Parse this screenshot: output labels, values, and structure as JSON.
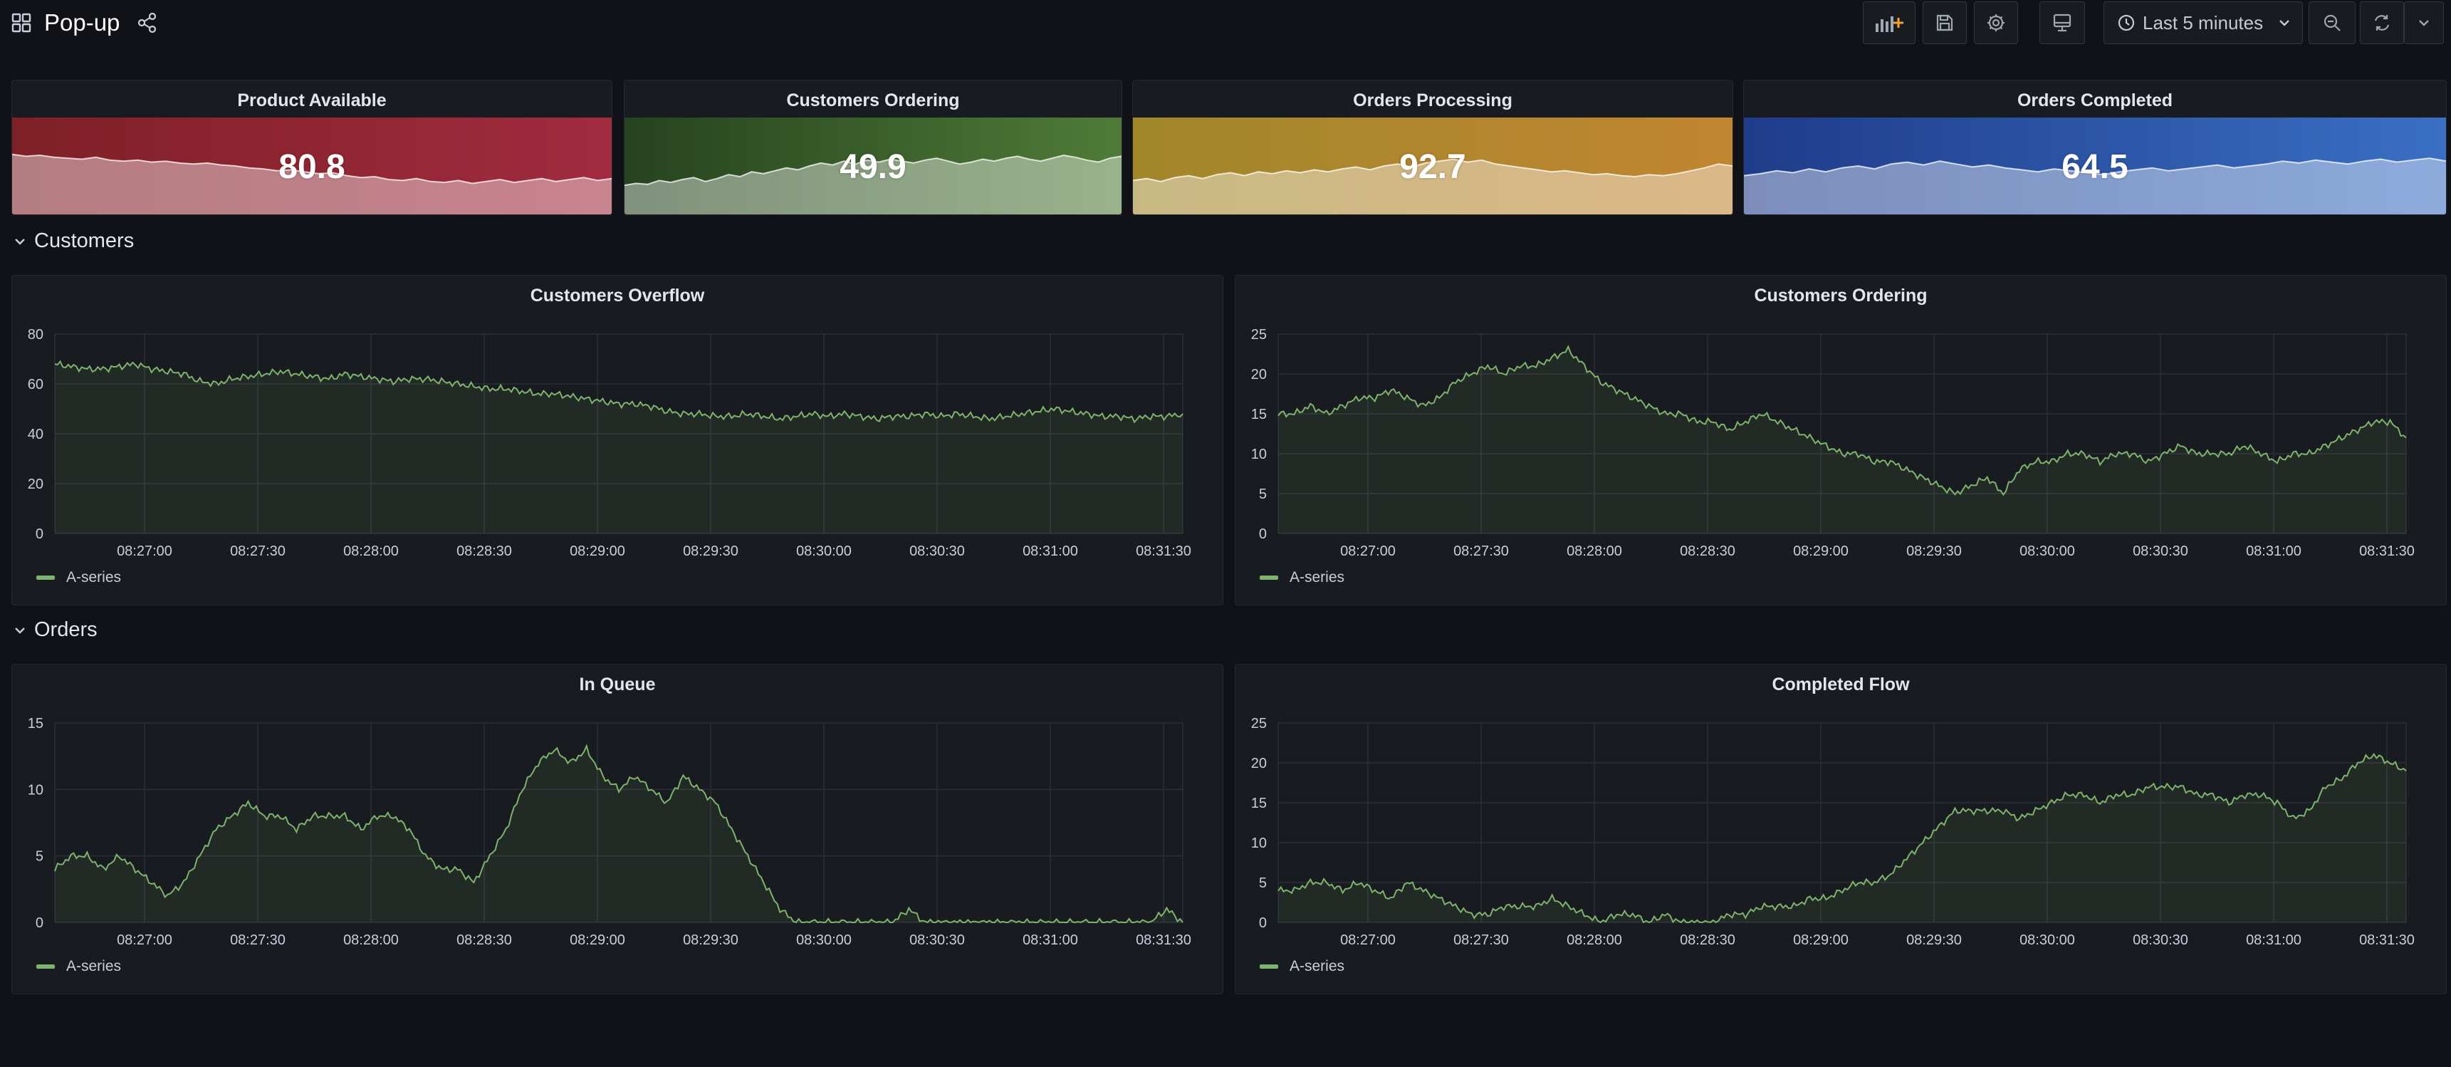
{
  "header": {
    "title": "Pop-up",
    "time_range": "Last 5 minutes",
    "icons": [
      "dashboards-grid-icon",
      "share-icon",
      "add-panel-icon",
      "save-icon",
      "settings-icon",
      "tv-mode-icon",
      "clock-icon",
      "chevron-down-icon",
      "zoom-out-icon",
      "refresh-icon",
      "chevron-down-icon"
    ]
  },
  "stats": [
    {
      "title": "Product Available",
      "value": "80.8",
      "color_from": "#7e2026",
      "color_to": "#a12b3f",
      "spark": [
        62,
        60,
        61,
        59,
        58,
        57,
        59,
        56,
        55,
        56,
        54,
        55,
        53,
        52,
        53,
        51,
        50,
        48,
        47,
        45,
        46,
        44,
        42,
        43,
        40,
        38,
        39,
        36,
        35,
        37,
        34,
        33,
        35,
        32,
        34,
        36,
        33,
        35,
        37,
        34,
        36,
        38,
        35,
        37
      ]
    },
    {
      "title": "Customers Ordering",
      "value": "49.9",
      "color_from": "#26431f",
      "color_to": "#4f7b37",
      "spark": [
        30,
        32,
        31,
        35,
        33,
        36,
        38,
        34,
        37,
        41,
        39,
        44,
        42,
        45,
        48,
        46,
        50,
        53,
        51,
        55,
        52,
        56,
        54,
        57,
        55,
        53,
        56,
        58,
        55,
        52,
        54,
        57,
        55,
        58,
        60,
        57,
        55,
        58,
        61,
        59,
        56,
        54,
        58,
        60
      ]
    },
    {
      "title": "Orders Processing",
      "value": "92.7",
      "color_from": "#a1872a",
      "color_to": "#c18632",
      "spark": [
        35,
        37,
        34,
        38,
        40,
        37,
        41,
        43,
        40,
        44,
        42,
        45,
        43,
        46,
        44,
        47,
        49,
        46,
        50,
        52,
        49,
        53,
        55,
        57,
        54,
        56,
        52,
        50,
        48,
        46,
        44,
        45,
        43,
        41,
        42,
        40,
        39,
        41,
        40,
        42,
        45,
        48,
        52,
        50
      ]
    },
    {
      "title": "Orders Completed",
      "value": "64.5",
      "color_from": "#1f3c8a",
      "color_to": "#3a6fc3",
      "spark": [
        40,
        42,
        45,
        43,
        47,
        44,
        48,
        50,
        47,
        52,
        54,
        51,
        55,
        52,
        49,
        51,
        48,
        46,
        44,
        47,
        45,
        43,
        41,
        44,
        46,
        48,
        45,
        47,
        49,
        51,
        48,
        50,
        52,
        55,
        53,
        56,
        54,
        52,
        55,
        57,
        54,
        56,
        58,
        55
      ]
    }
  ],
  "rows": [
    {
      "title": "Customers",
      "icon": "chevron-down-icon"
    },
    {
      "title": "Orders",
      "icon": "chevron-down-icon"
    }
  ],
  "x_ticks": [
    "08:27:00",
    "08:27:30",
    "08:28:00",
    "08:28:30",
    "08:29:00",
    "08:29:30",
    "08:30:00",
    "08:30:30",
    "08:31:00",
    "08:31:30"
  ],
  "chart_data": [
    {
      "type": "line",
      "title": "Customers Overflow",
      "ylim": [
        0,
        80
      ],
      "y_ticks": [
        0,
        20,
        40,
        60,
        80
      ],
      "series": [
        {
          "name": "A-series",
          "color": "#7eb26d",
          "values": [
            68,
            67,
            66,
            66,
            67,
            68,
            66,
            65,
            64,
            61,
            60,
            62,
            63,
            64,
            65,
            64,
            63,
            62,
            64,
            63,
            62,
            61,
            62,
            62,
            61,
            60,
            59,
            58,
            58,
            57,
            56,
            56,
            55,
            54,
            53,
            52,
            52,
            51,
            49,
            48,
            48,
            47,
            47,
            48,
            47,
            46,
            47,
            48,
            47,
            48,
            47,
            46,
            47,
            47,
            48,
            47,
            48,
            47,
            46,
            47,
            48,
            49,
            50,
            49,
            48,
            47,
            47,
            46,
            47,
            47,
            48
          ]
        }
      ]
    },
    {
      "type": "line",
      "title": "Customers Ordering",
      "ylim": [
        0,
        25
      ],
      "y_ticks": [
        0,
        5,
        10,
        15,
        20,
        25
      ],
      "series": [
        {
          "name": "A-series",
          "color": "#7eb26d",
          "values": [
            15,
            15,
            16,
            15,
            16,
            17,
            17,
            18,
            17,
            16,
            17,
            19,
            20,
            21,
            20,
            21,
            21,
            22,
            23,
            21,
            19,
            18,
            17,
            16,
            15,
            15,
            14,
            14,
            13,
            14,
            15,
            14,
            13,
            12,
            11,
            10,
            10,
            9,
            9,
            8,
            7,
            6,
            5,
            6,
            7,
            5,
            8,
            9,
            9,
            10,
            10,
            9,
            10,
            10,
            9,
            10,
            11,
            10,
            10,
            10,
            11,
            10,
            9,
            10,
            10,
            11,
            12,
            13,
            14,
            14,
            12
          ]
        }
      ]
    },
    {
      "type": "line",
      "title": "In Queue",
      "ylim": [
        0,
        15
      ],
      "y_ticks": [
        0,
        5,
        10,
        15
      ],
      "series": [
        {
          "name": "A-series",
          "color": "#7eb26d",
          "values": [
            4,
            5,
            5,
            4,
            5,
            4,
            3,
            2,
            3,
            5,
            7,
            8,
            9,
            8,
            8,
            7,
            8,
            8,
            8,
            7,
            8,
            8,
            7,
            5,
            4,
            4,
            3,
            5,
            7,
            10,
            12,
            13,
            12,
            13,
            11,
            10,
            11,
            10,
            9,
            11,
            10,
            9,
            7,
            5,
            3,
            1,
            0,
            0,
            0,
            0,
            0,
            0,
            0,
            1,
            0,
            0,
            0,
            0,
            0,
            0,
            0,
            0,
            0,
            0,
            0,
            0,
            0,
            0,
            0,
            1,
            0
          ]
        }
      ]
    },
    {
      "type": "line",
      "title": "Completed Flow",
      "ylim": [
        0,
        25
      ],
      "y_ticks": [
        0,
        5,
        10,
        15,
        20,
        25
      ],
      "series": [
        {
          "name": "A-series",
          "color": "#7eb26d",
          "values": [
            4,
            4,
            5,
            5,
            4,
            5,
            4,
            3,
            5,
            4,
            3,
            2,
            1,
            1,
            2,
            2,
            2,
            3,
            2,
            1,
            0,
            1,
            1,
            0,
            1,
            0,
            0,
            0,
            1,
            1,
            2,
            2,
            2,
            3,
            3,
            4,
            5,
            5,
            6,
            8,
            10,
            12,
            14,
            14,
            14,
            14,
            13,
            14,
            15,
            16,
            16,
            15,
            16,
            16,
            17,
            17,
            17,
            16,
            16,
            15,
            16,
            16,
            15,
            13,
            14,
            17,
            18,
            20,
            21,
            20,
            19
          ]
        }
      ]
    }
  ]
}
